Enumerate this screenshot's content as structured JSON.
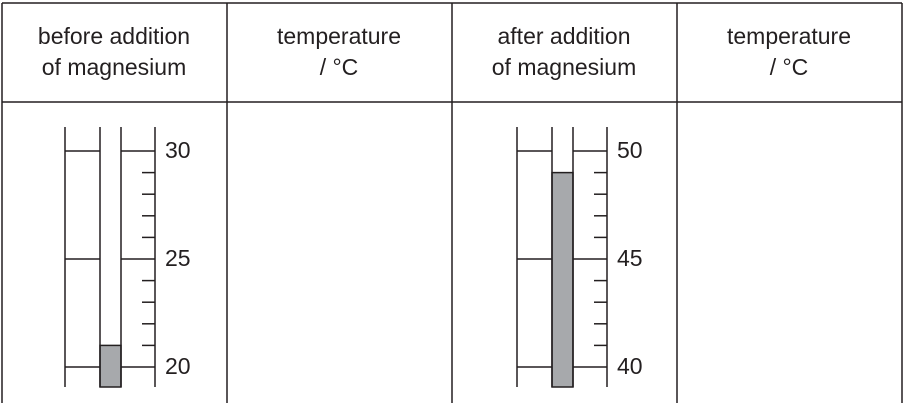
{
  "table": {
    "headers": [
      [
        "before addition",
        "of magnesium"
      ],
      [
        "temperature",
        "/ °C"
      ],
      [
        "after addition",
        "of magnesium"
      ],
      [
        "temperature",
        "/ °C"
      ]
    ]
  },
  "thermometers": [
    {
      "reading": 21,
      "ylim": [
        20,
        30
      ],
      "yticks": [
        20,
        25,
        30
      ],
      "minor_ticks": [
        21,
        22,
        23,
        24,
        26,
        27,
        28,
        29
      ],
      "liquid_color": "#a7a9ac"
    },
    {
      "reading": 49,
      "ylim": [
        40,
        50
      ],
      "yticks": [
        40,
        45,
        50
      ],
      "minor_ticks": [
        41,
        42,
        43,
        44,
        46,
        47,
        48,
        49
      ],
      "liquid_color": "#a7a9ac"
    }
  ]
}
